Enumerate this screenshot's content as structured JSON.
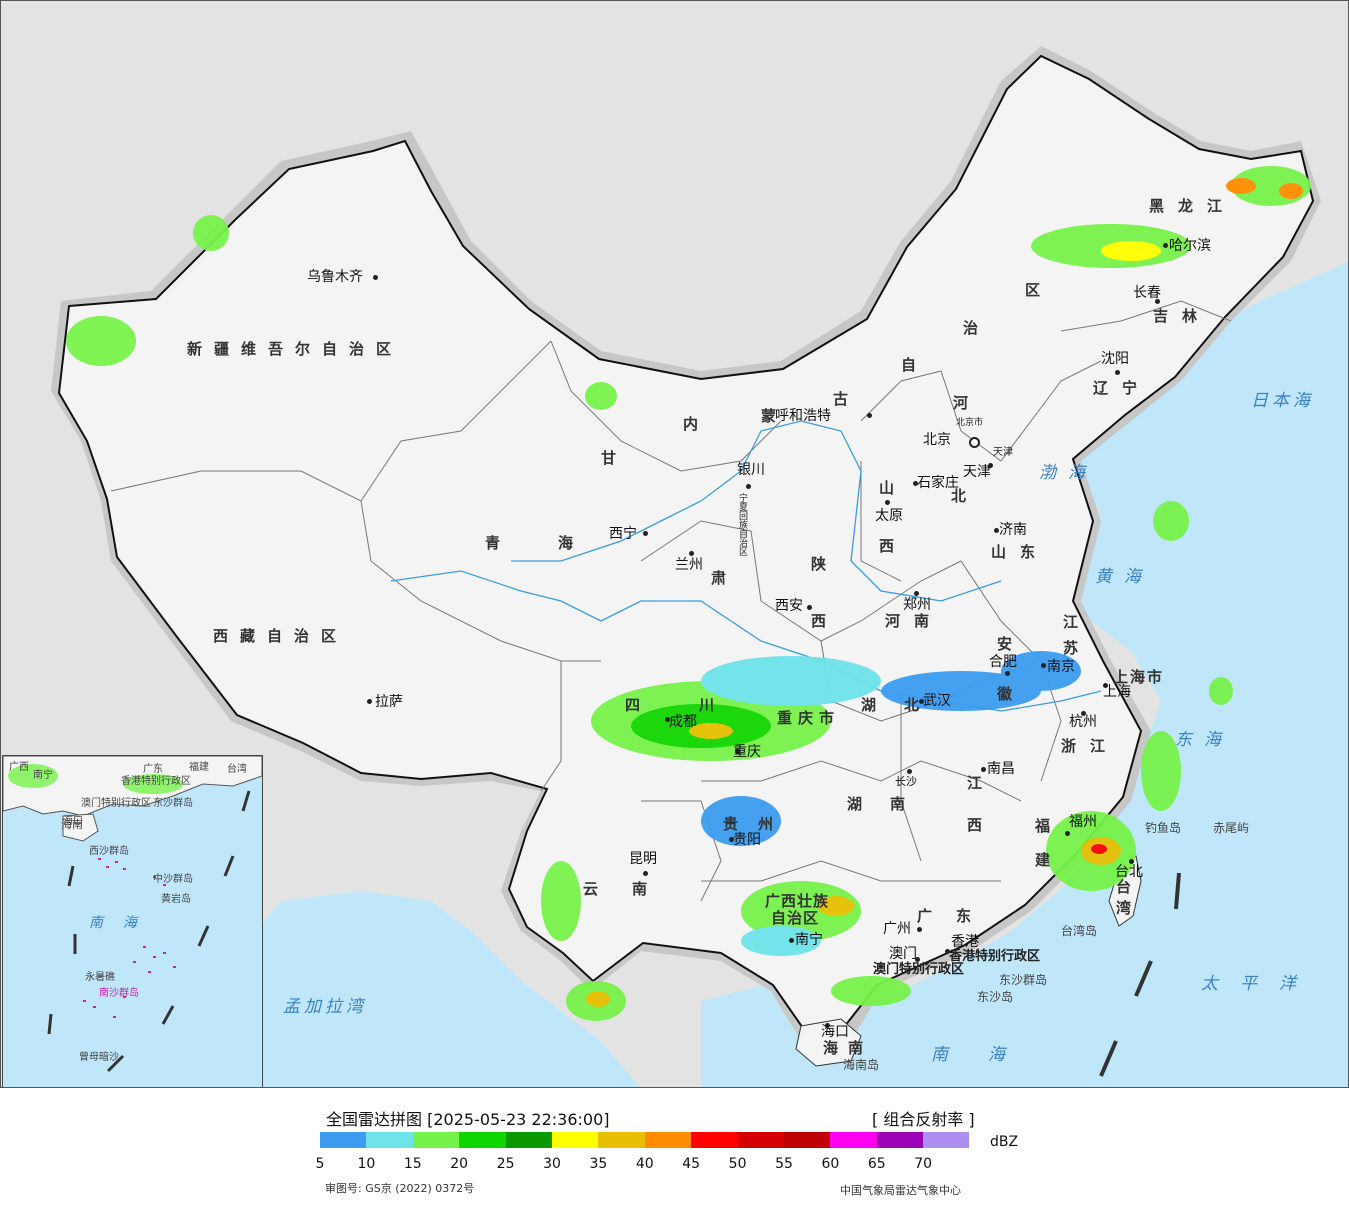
{
  "legend": {
    "title": "全国雷达拼图 [2025-05-23 22:36:00]",
    "product": "[ 组合反射率 ]",
    "unit": "dBZ",
    "colors": [
      "#3d9cf0",
      "#6fe3ea",
      "#77f24a",
      "#10d600",
      "#0a9800",
      "#ffff00",
      "#e6c000",
      "#ff8c00",
      "#ff0000",
      "#d60000",
      "#c00000",
      "#ff00f0",
      "#9a00b4",
      "#ac8ff0"
    ],
    "ticks": [
      "5",
      "10",
      "15",
      "20",
      "25",
      "30",
      "35",
      "40",
      "45",
      "50",
      "55",
      "60",
      "65",
      "70"
    ],
    "map_approval_no": "审图号: GS京 (2022) 0372号",
    "producer": "中国气象局雷达气象中心"
  },
  "regions": {
    "xinjiang": "新疆维吾尔自治区",
    "xizang": "西藏自治区",
    "qinghai_1": "青",
    "qinghai_2": "海",
    "gansu_1": "甘",
    "gansu_2": "肃",
    "neimenggu_1": "内",
    "neimenggu_2": "蒙",
    "neimenggu_3": "古",
    "neimenggu_4": "自",
    "neimenggu_5": "治",
    "neimenggu_6": "区",
    "heilongjiang": "黑龙江",
    "jilin": "吉林",
    "liaoning": "辽宁",
    "hebei_1": "河",
    "hebei_2": "北",
    "shanxi_1": "山",
    "shanxi_2": "西",
    "shaanxi_1": "陕",
    "shaanxi_2": "西",
    "shandong": "山东",
    "henan": "河南",
    "jiangsu_1": "江",
    "jiangsu_2": "苏",
    "anhui_1": "安",
    "anhui_2": "徽",
    "zhejiang": "浙江",
    "sichuan_1": "四",
    "sichuan_2": "川",
    "chongqing": "重庆市",
    "hubei": "湖北",
    "hunan": "湖南",
    "jiangxi_1": "江",
    "jiangxi_2": "西",
    "fujian_1": "福",
    "fujian_2": "建",
    "guizhou": "贵州",
    "yunnan": "云南",
    "guangxi_1": "广西壮族",
    "guangxi_2": "自治区",
    "guangdong": "广东",
    "hainan": "海南",
    "taiwan": "台湾",
    "shanghai": "上海市",
    "ningxia": "宁夏回族自治区"
  },
  "cities": {
    "urumqi": "乌鲁木齐",
    "lhasa": "拉萨",
    "xining": "西宁",
    "lanzhou": "兰州",
    "yinchuan": "银川",
    "hohhot": "呼和浩特",
    "beijing": "北京",
    "beijing_city": "北京市",
    "tianjin": "天津",
    "tianjin_city": "天津",
    "shijiazhuang": "石家庄",
    "taiyuan": "太原",
    "jinan": "济南",
    "zhengzhou": "郑州",
    "xian": "西安",
    "harbin": "哈尔滨",
    "changchun": "长春",
    "shenyang": "沈阳",
    "nanjing": "南京",
    "hefei": "合肥",
    "shanghai": "上海",
    "hangzhou": "杭州",
    "wuhan": "武汉",
    "chengdu": "成都",
    "chongqing": "重庆",
    "nanchang": "南昌",
    "changsha": "长沙",
    "fuzhou": "福州",
    "guiyang": "贵阳",
    "kunming": "昆明",
    "nanning": "南宁",
    "guangzhou": "广州",
    "hongkong": "香港",
    "macau": "澳门",
    "haikou": "海口",
    "taipei": "台北"
  },
  "sar": {
    "hongkong": "香港特别行政区",
    "macau": "澳门特别行政区"
  },
  "islands": {
    "diaoyu": "钓鱼岛",
    "chiwei": "赤尾屿",
    "taiwan_island": "台湾岛",
    "dongsha_group": "东沙群岛",
    "dongsha_island": "东沙岛",
    "hainan_island": "海南岛"
  },
  "seas": {
    "bohai": "渤海",
    "huanghai": "黄海",
    "donghai": "东海",
    "nanhai": "南海",
    "japan_sea": "日本海",
    "pacific": "太平洋",
    "bengal": "孟加拉湾"
  },
  "inset": {
    "nanhai": "南海",
    "hainan": "海南",
    "haikou": "海口",
    "xisha": "西沙群岛",
    "zhongsha": "中沙群岛",
    "huangyan": "黄岩岛",
    "nansha": "南沙群岛",
    "dongsha": "东沙群岛",
    "yongshu": "永暑礁",
    "zengmu": "曾母暗沙",
    "hk": "香港特别行政区",
    "macau": "澳门特别行政区",
    "taiwan": "台湾",
    "guangdong": "广东",
    "fujian": "福建",
    "nanning": "南宁",
    "guangxi": "广西"
  }
}
